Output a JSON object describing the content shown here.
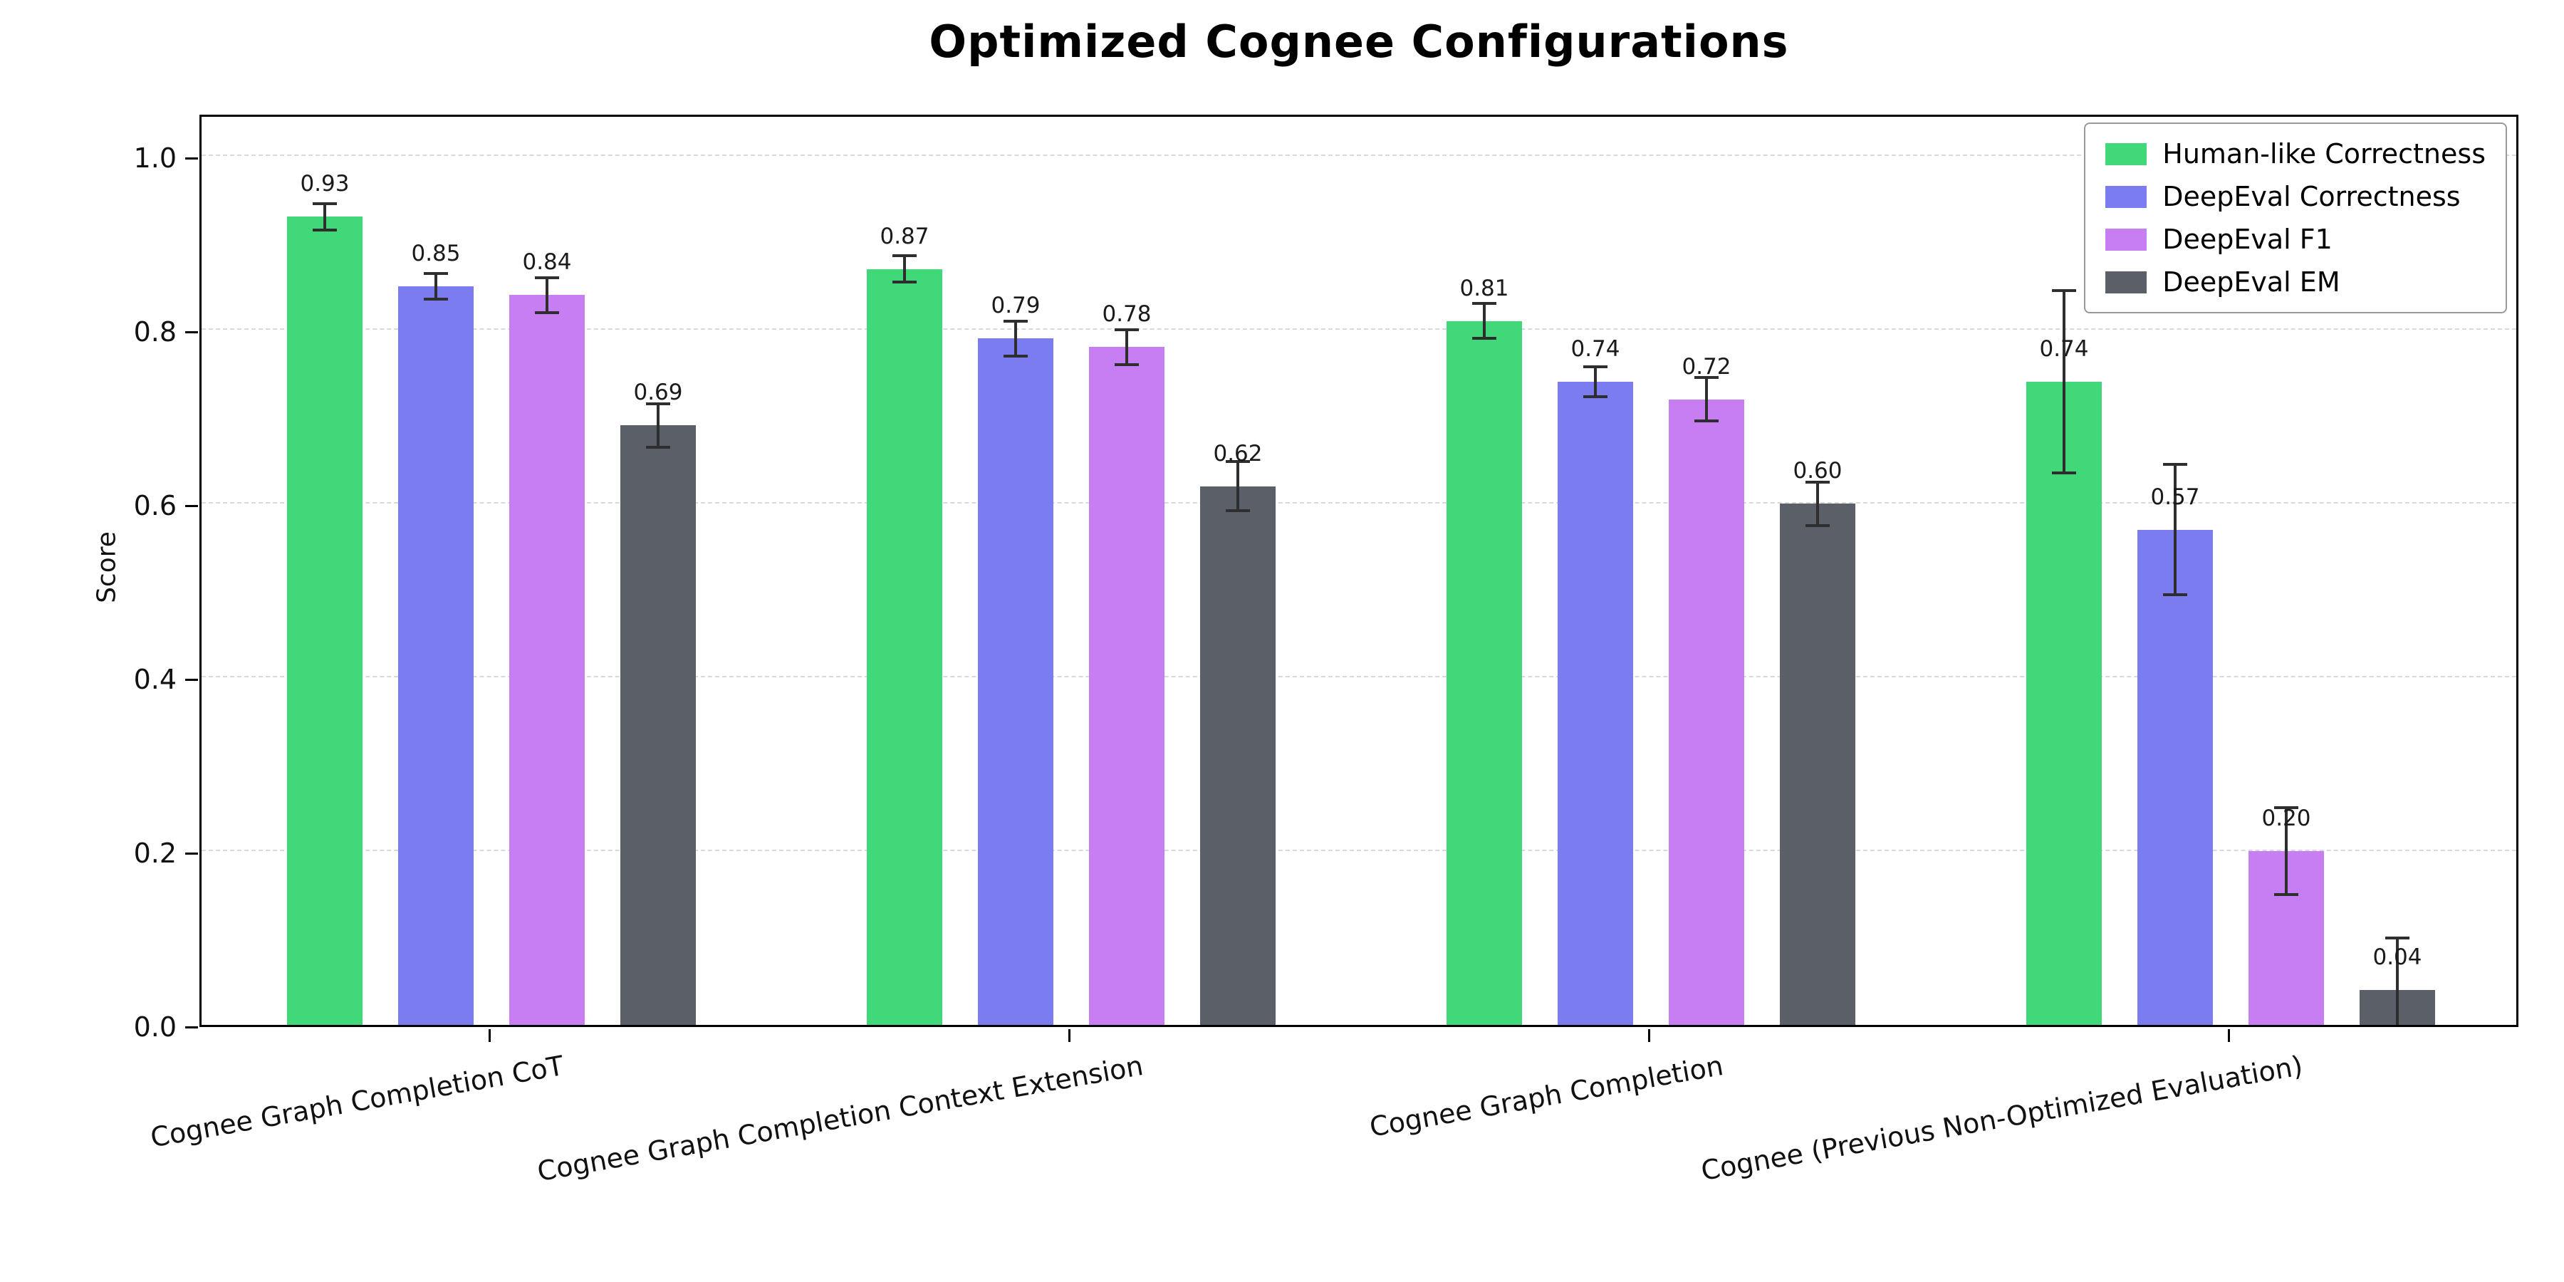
{
  "chart_data": {
    "type": "bar",
    "title": "Optimized Cognee Configurations",
    "xlabel": "",
    "ylabel": "Score",
    "ylim": [
      0,
      1.05
    ],
    "yticks": [
      0.0,
      0.2,
      0.4,
      0.6,
      0.8,
      1.0
    ],
    "grid": "horizontal-dashed",
    "legend_position": "upper-right",
    "bar_value_labels": true,
    "error_bars": true,
    "categories": [
      "Cognee Graph Completion CoT",
      "Cognee Graph Completion Context Extension",
      "Cognee Graph Completion",
      "Cognee (Previous Non-Optimized Evaluation)"
    ],
    "series": [
      {
        "name": "Human-like Correctness",
        "color": "#41d87a",
        "values": [
          0.93,
          0.87,
          0.81,
          0.74
        ],
        "errors": [
          0.015,
          0.015,
          0.02,
          0.105
        ]
      },
      {
        "name": "DeepEval Correctness",
        "color": "#7b7cf0",
        "values": [
          0.85,
          0.79,
          0.74,
          0.57
        ],
        "errors": [
          0.015,
          0.02,
          0.017,
          0.075
        ]
      },
      {
        "name": "DeepEval F1",
        "color": "#c67ef2",
        "values": [
          0.84,
          0.78,
          0.72,
          0.2
        ],
        "errors": [
          0.02,
          0.02,
          0.025,
          0.05
        ]
      },
      {
        "name": "DeepEval EM",
        "color": "#5b5f68",
        "values": [
          0.69,
          0.62,
          0.6,
          0.04
        ],
        "errors": [
          0.025,
          0.028,
          0.025,
          0.06
        ]
      }
    ]
  }
}
